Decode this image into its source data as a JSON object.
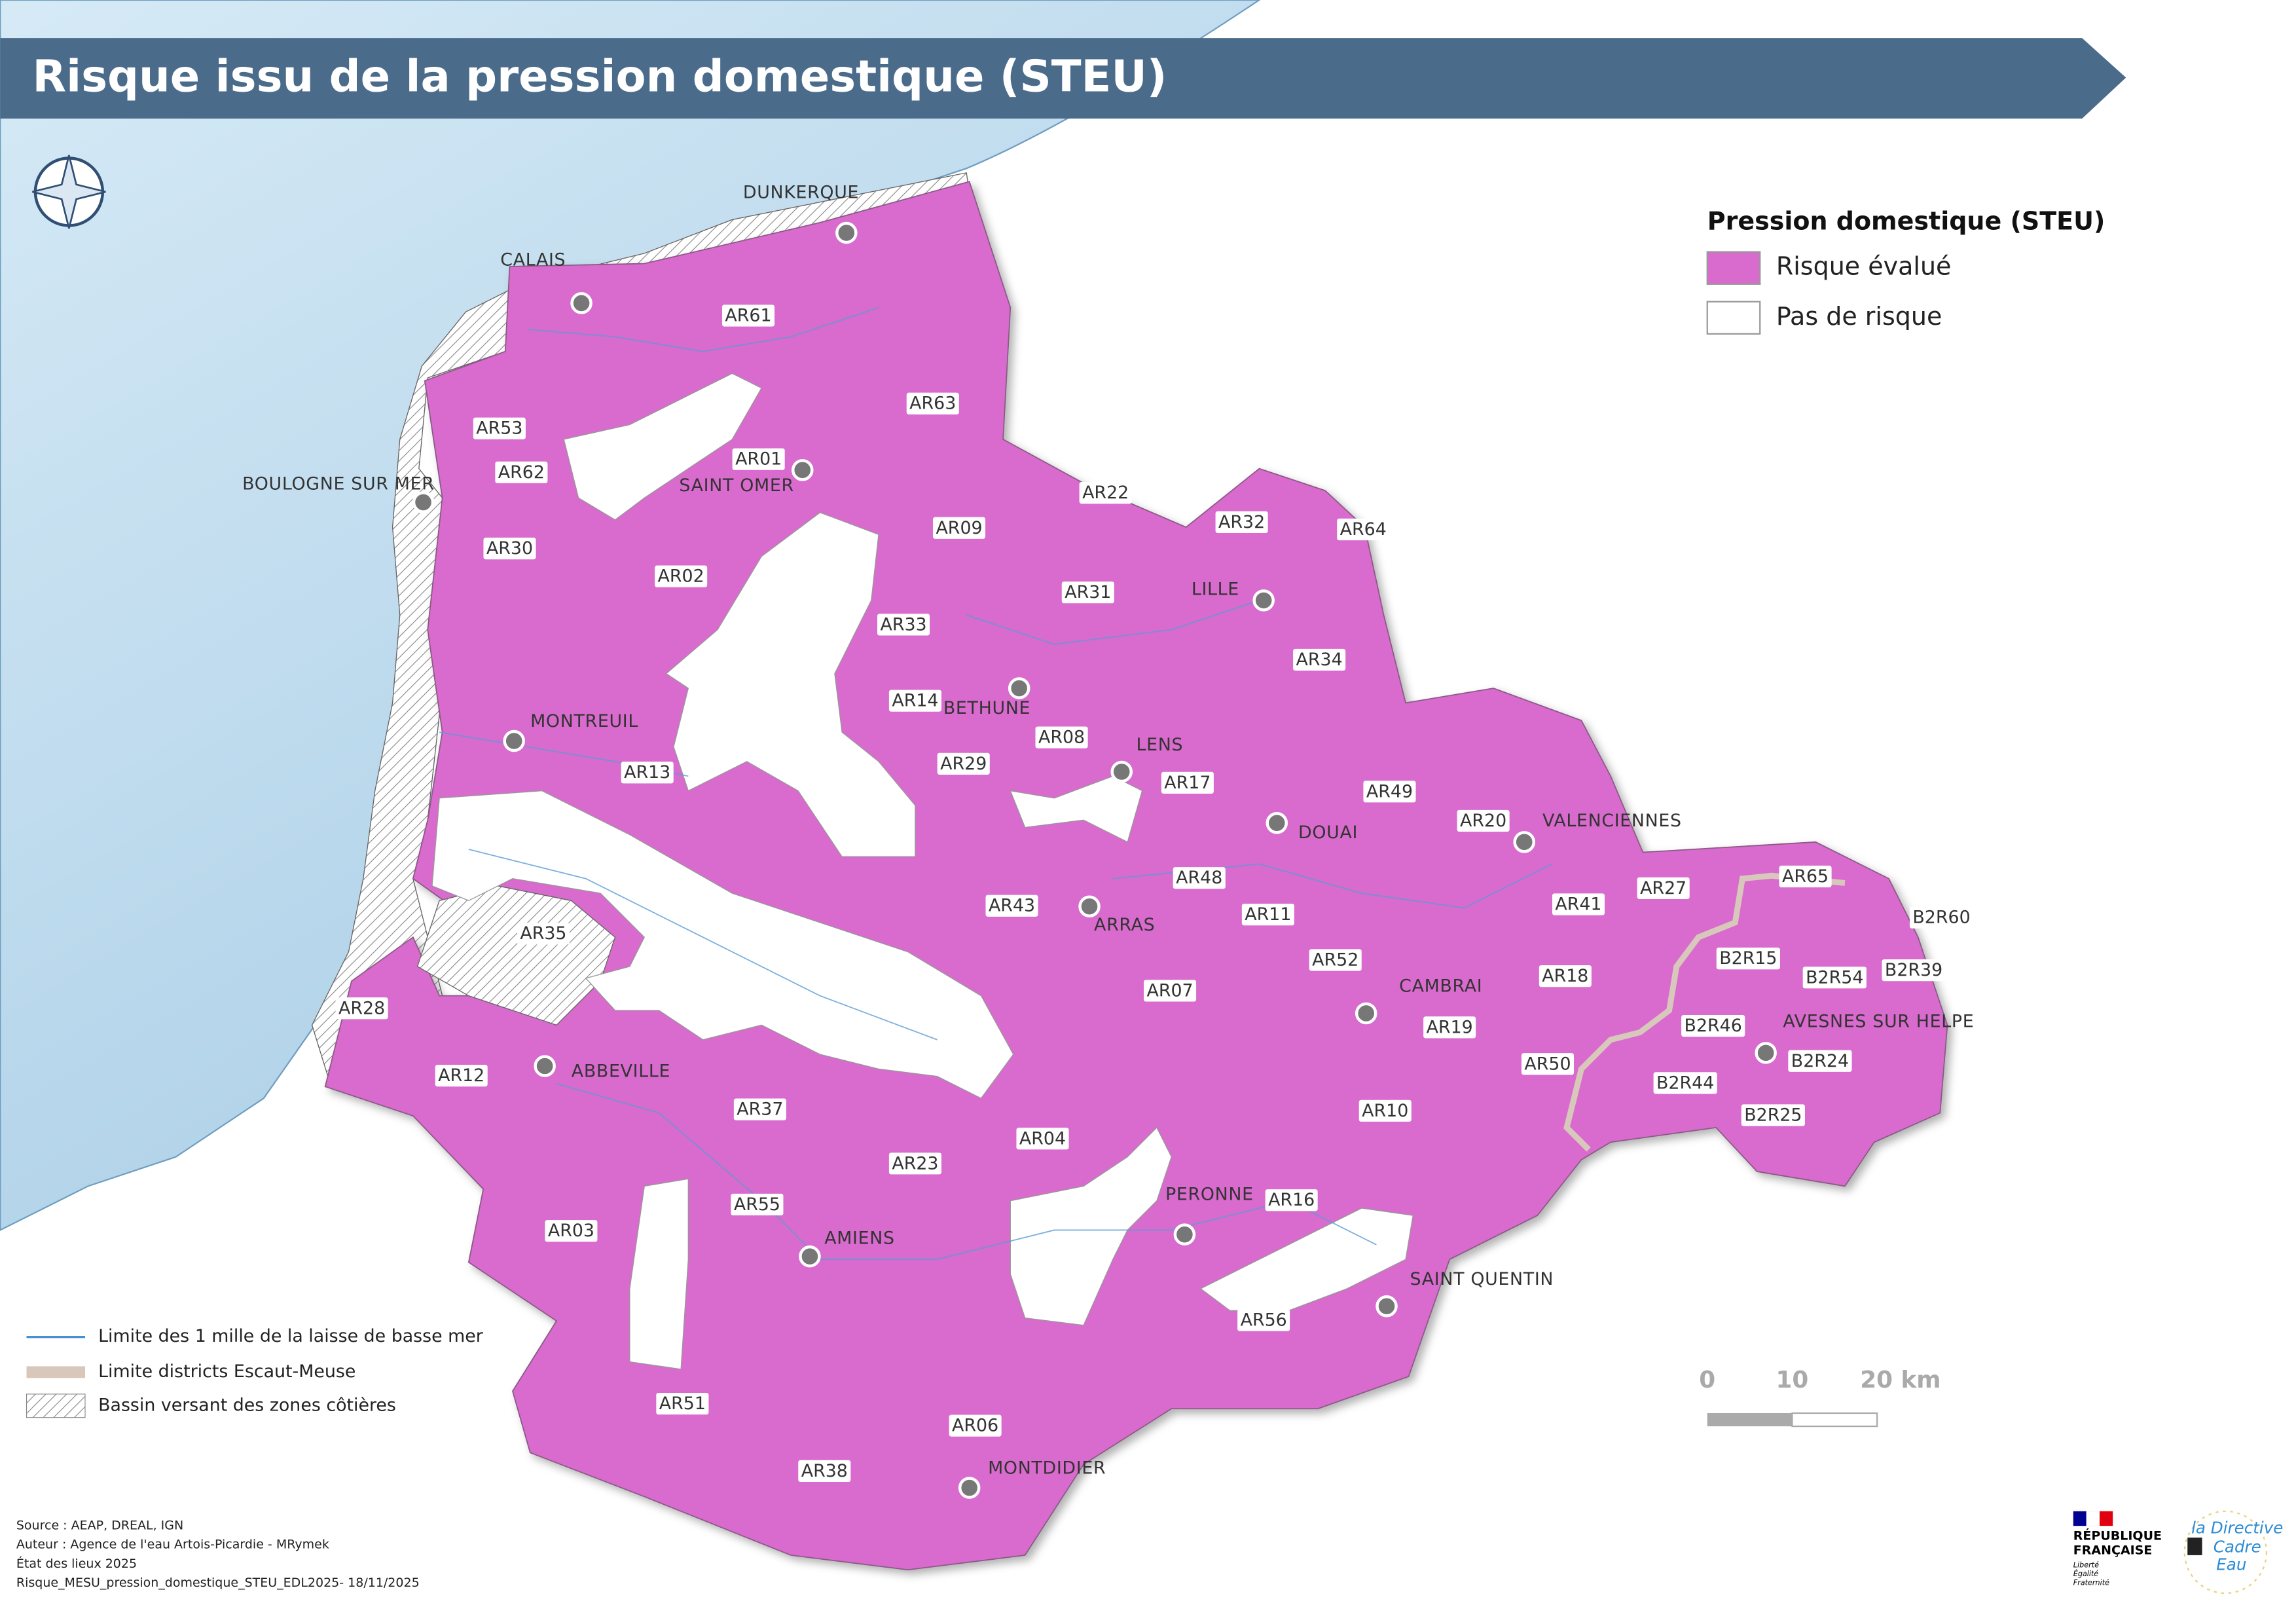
{
  "header": {
    "title": "Risque issu de la pression domestique (STEU)"
  },
  "legend": {
    "title": "Pression domestique (STEU)",
    "items": [
      "Risque évalué",
      "Pas de risque"
    ]
  },
  "cities": [
    {
      "name": "DUNKERQUE"
    },
    {
      "name": "CALAIS"
    },
    {
      "name": "BOULOGNE SUR MER"
    },
    {
      "name": "SAINT OMER"
    },
    {
      "name": "LILLE"
    },
    {
      "name": "BETHUNE"
    },
    {
      "name": "LENS"
    },
    {
      "name": "MONTREUIL"
    },
    {
      "name": "DOUAI"
    },
    {
      "name": "VALENCIENNES"
    },
    {
      "name": "ARRAS"
    },
    {
      "name": "CAMBRAI"
    },
    {
      "name": "AVESNES SUR HELPE"
    },
    {
      "name": "ABBEVILLE"
    },
    {
      "name": "PERONNE"
    },
    {
      "name": "SAINT QUENTIN"
    },
    {
      "name": "AMIENS"
    },
    {
      "name": "MONTDIDIER"
    }
  ],
  "zones": [
    "AR61",
    "AR63",
    "AR53",
    "AR62",
    "AR01",
    "AR22",
    "AR32",
    "AR64",
    "AR09",
    "AR30",
    "AR02",
    "AR31",
    "AR33",
    "AR34",
    "AR14",
    "AR08",
    "AR29",
    "AR13",
    "AR17",
    "AR49",
    "AR20",
    "AR27",
    "AR65",
    "B2R60",
    "AR41",
    "AR43",
    "AR48",
    "AR11",
    "AR52",
    "B2R15",
    "B2R54",
    "B2R39",
    "AR18",
    "AR35",
    "AR28",
    "AR07",
    "AR19",
    "B2R46",
    "B2R24",
    "AR50",
    "AR12",
    "B2R44",
    "AR10",
    "AR37",
    "B2R25",
    "AR04",
    "AR23",
    "AR55",
    "AR16",
    "AR03",
    "AR56",
    "AR51",
    "AR06",
    "AR38"
  ],
  "map_legend": [
    "Limite des 1 mille de la laisse de basse mer",
    "Limite districts Escaut-Meuse",
    "Bassin versant des zones côtières"
  ],
  "scale": {
    "labels": [
      "0",
      "10",
      "20 km"
    ]
  },
  "source": [
    "Source : AEAP, DREAL, IGN",
    "Auteur : Agence de l'eau Artois-Picardie - MRymek",
    "État des lieux 2025",
    "Risque_MESU_pression_domestique_STEU_EDL2025- 18/11/2025"
  ],
  "logos": {
    "republique": [
      "RÉPUBLIQUE",
      "FRANÇAISE"
    ],
    "motto": [
      "Liberté",
      "Égalité",
      "Fraternité"
    ],
    "dce": [
      "la Directive",
      "Cadre",
      "Eau"
    ]
  }
}
